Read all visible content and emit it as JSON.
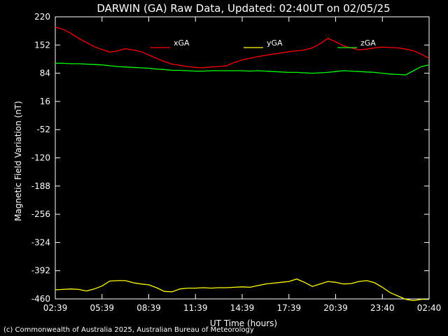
{
  "chart_data": {
    "type": "line",
    "title": "DARWIN (GA) Raw Data, Updated: 02:40UT on 02/05/25",
    "xlabel": "UT Time (hours)",
    "ylabel": "Magnetic Field Variation (nT)",
    "credit": "(c) Commonwealth of Australia 2025, Australian Bureau of Meteorology",
    "ylim": [
      -460,
      220
    ],
    "xlim": [
      "02:39",
      "02:40"
    ],
    "yticks": [
      220,
      152,
      84,
      16,
      -52,
      -120,
      -188,
      -256,
      -324,
      -392,
      -460
    ],
    "xticks": [
      "02:39",
      "05:39",
      "08:39",
      "11:39",
      "14:39",
      "17:39",
      "20:39",
      "23:40",
      "02:40"
    ],
    "grid": false,
    "legend_position": "top",
    "x_hours": [
      0,
      0.5,
      1,
      1.5,
      2,
      2.5,
      3,
      3.5,
      4,
      4.5,
      5,
      5.5,
      6,
      6.5,
      7,
      7.5,
      8,
      8.5,
      9,
      9.5,
      10,
      10.5,
      11,
      11.5,
      12,
      12.5,
      13,
      13.5,
      14,
      14.5,
      15,
      15.5,
      16,
      16.5,
      17,
      17.5,
      18,
      18.5,
      19,
      19.5,
      20,
      20.5,
      21,
      21.5,
      22,
      22.5,
      23,
      23.5,
      24
    ],
    "series": [
      {
        "name": "xGA",
        "color": "#ff0000",
        "values": [
          195,
          190,
          180,
          168,
          158,
          148,
          141,
          135,
          138,
          143,
          140,
          136,
          128,
          120,
          112,
          106,
          103,
          100,
          98,
          97,
          99,
          100,
          102,
          110,
          116,
          120,
          124,
          127,
          130,
          133,
          136,
          138,
          140,
          145,
          155,
          168,
          160,
          150,
          145,
          140,
          142,
          145,
          147,
          146,
          145,
          142,
          138,
          130,
          120
        ]
      },
      {
        "name": "yGA",
        "color": "#ffff00",
        "values": [
          -438,
          -437,
          -436,
          -437,
          -441,
          -436,
          -429,
          -417,
          -416,
          -416,
          -421,
          -424,
          -426,
          -433,
          -442,
          -443,
          -436,
          -434,
          -434,
          -433,
          -434,
          -433,
          -433,
          -432,
          -431,
          -432,
          -428,
          -424,
          -422,
          -420,
          -418,
          -412,
          -420,
          -430,
          -424,
          -418,
          -420,
          -424,
          -423,
          -418,
          -416,
          -421,
          -432,
          -445,
          -453,
          -461,
          -464,
          -461,
          -461
        ]
      },
      {
        "name": "zGA",
        "color": "#00ff00",
        "values": [
          108,
          108,
          107,
          107,
          106,
          105,
          104,
          102,
          100,
          99,
          98,
          97,
          96,
          94,
          93,
          91,
          91,
          90,
          89,
          89,
          90,
          90,
          90,
          90,
          90,
          89,
          90,
          89,
          88,
          87,
          86,
          86,
          85,
          84,
          85,
          86,
          88,
          90,
          89,
          88,
          87,
          86,
          84,
          82,
          81,
          80,
          90,
          100,
          104
        ]
      }
    ]
  }
}
